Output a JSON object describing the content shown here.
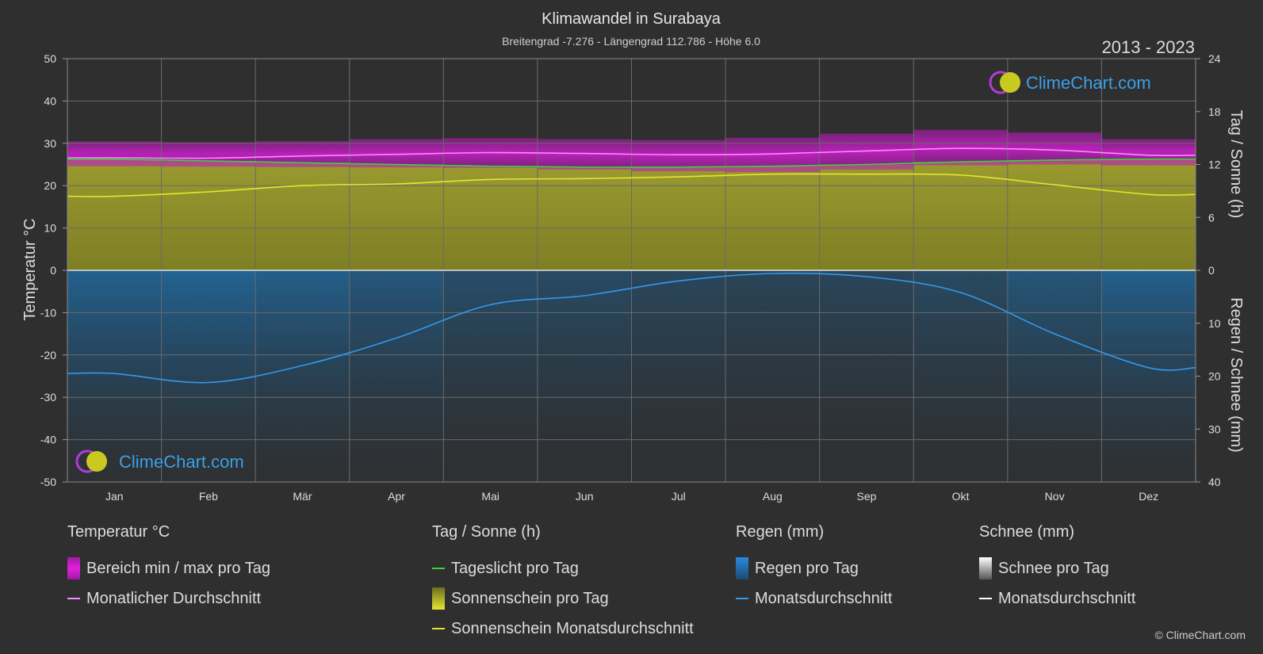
{
  "header": {
    "title": "Klimawandel in Surabaya",
    "subtitle": "Breitengrad -7.276 - Längengrad 112.786 - Höhe 6.0",
    "years": "2013 - 2023"
  },
  "brand": {
    "name": "ClimeChart.com",
    "copyright": "© ClimeChart.com"
  },
  "chart_data": {
    "type": "area",
    "categories": [
      "Jan",
      "Feb",
      "Mär",
      "Apr",
      "Mai",
      "Jun",
      "Jul",
      "Aug",
      "Sep",
      "Okt",
      "Nov",
      "Dez"
    ],
    "ylabel_left": "Temperatur °C",
    "ylabel_right_top": "Tag / Sonne (h)",
    "ylabel_right_bottom": "Regen / Schnee (mm)",
    "ylim_temp": [
      -50,
      50
    ],
    "yticks_temp": [
      50,
      40,
      30,
      20,
      10,
      0,
      -10,
      -20,
      -30,
      -40,
      -50
    ],
    "ylim_hours": [
      0,
      24
    ],
    "yticks_hours": [
      24,
      18,
      12,
      6,
      0
    ],
    "ylim_precip": [
      0,
      40
    ],
    "yticks_precip": [
      0,
      10,
      20,
      30,
      40
    ],
    "grid": true,
    "series": [
      {
        "name": "Bereich min / max pro Tag",
        "unit": "°C",
        "min": [
          24.6,
          24.5,
          24.4,
          24.3,
          24.2,
          23.8,
          23.4,
          23.2,
          23.8,
          24.8,
          25.0,
          24.8
        ],
        "max": [
          30.5,
          30.3,
          30.5,
          31.0,
          31.2,
          31.0,
          30.8,
          31.3,
          32.3,
          33.2,
          32.6,
          31.0
        ]
      },
      {
        "name": "Monatlicher Durchschnitt",
        "unit": "°C",
        "values": [
          26.6,
          26.5,
          27.0,
          27.4,
          27.8,
          27.6,
          27.3,
          27.5,
          28.2,
          28.8,
          28.4,
          27.2
        ]
      },
      {
        "name": "Tageslicht pro Tag",
        "unit": "h",
        "values": [
          12.6,
          12.4,
          12.2,
          12.0,
          11.8,
          11.7,
          11.7,
          11.8,
          12.0,
          12.3,
          12.5,
          12.6
        ]
      },
      {
        "name": "Sonnenschein Monatsdurchschnitt",
        "unit": "h",
        "values": [
          8.4,
          8.9,
          9.6,
          9.8,
          10.3,
          10.4,
          10.6,
          10.9,
          10.9,
          10.8,
          9.7,
          8.6
        ]
      },
      {
        "name": "Regen Monatsdurchschnitt",
        "unit": "mm",
        "values": [
          19.5,
          21.2,
          18.0,
          12.8,
          6.5,
          4.8,
          2.0,
          0.6,
          1.2,
          4.2,
          12.0,
          18.4
        ]
      }
    ]
  },
  "legend": {
    "temp": {
      "title": "Temperatur °C",
      "range": "Bereich min / max pro Tag",
      "avg": "Monatlicher Durchschnitt"
    },
    "sun": {
      "title": "Tag / Sonne (h)",
      "daylight": "Tageslicht pro Tag",
      "sunshine": "Sonnenschein pro Tag",
      "sun_avg": "Sonnenschein Monatsdurchschnitt"
    },
    "rain": {
      "title": "Regen (mm)",
      "rain_day": "Regen pro Tag",
      "rain_avg": "Monatsdurchschnitt"
    },
    "snow": {
      "title": "Schnee (mm)",
      "snow_day": "Schnee pro Tag",
      "snow_avg": "Monatsdurchschnitt"
    }
  },
  "colors": {
    "background": "#2f2f2f",
    "grid": "#6a6a6a",
    "temp_range": "#d21ed2",
    "temp_avg": "#ff88ff",
    "daylight": "#39d439",
    "sunshine_fill": "#8e8e2a",
    "sunshine_avg": "#e5e52e",
    "rain_fill": "#1f6ea8",
    "rain_avg": "#3399ee",
    "snow": "#ffffff",
    "brand": "#3aa0e8"
  }
}
